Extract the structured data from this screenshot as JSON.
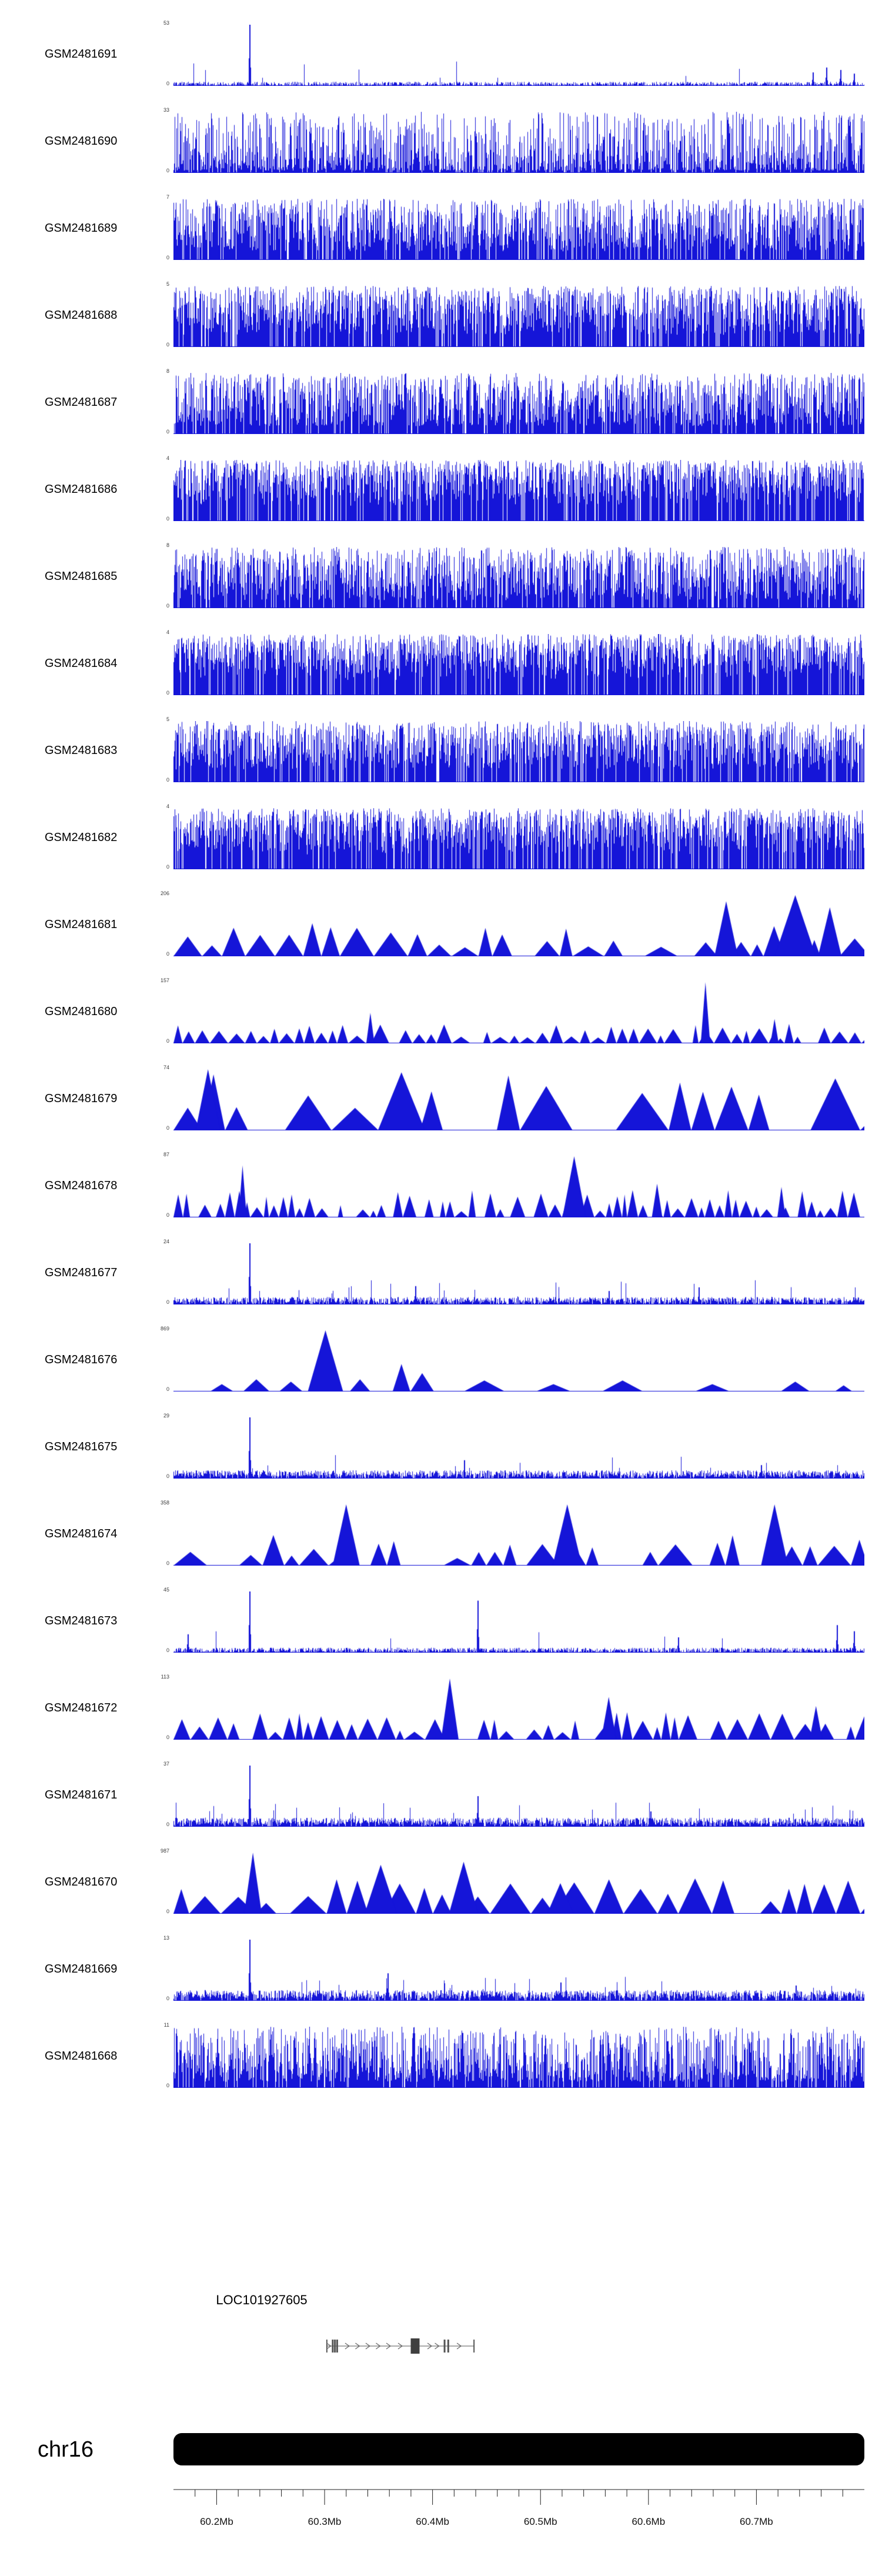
{
  "colors": {
    "signal": "#1515D8",
    "ideogram": "#000000",
    "axis": "#222222",
    "gene_line": "#777777",
    "gene_exon": "#555555",
    "gene_box": "#3f3f3f"
  },
  "chart_data": {
    "type": "area",
    "subtype": "genome-browser-signal-tracks",
    "title": "",
    "x_axis": {
      "unit": "Mb",
      "start_mb": 60.16,
      "end_mb": 60.8,
      "minor_tick_step_mb": 0.02,
      "ticks": [
        {
          "mb": 60.2,
          "label": "60.2Mb"
        },
        {
          "mb": 60.3,
          "label": "60.3Mb"
        },
        {
          "mb": 60.4,
          "label": "60.4Mb"
        },
        {
          "mb": 60.5,
          "label": "60.5Mb"
        },
        {
          "mb": 60.6,
          "label": "60.6Mb"
        },
        {
          "mb": 60.7,
          "label": "60.7Mb"
        }
      ]
    },
    "chromosome": {
      "name": "chr16"
    },
    "gene": {
      "name": "LOC101927605",
      "strand": "+",
      "start_frac": 0.222,
      "end_frac": 0.435,
      "exons": [
        {
          "x": 0.0,
          "w": 0.008
        },
        {
          "x": 0.04,
          "w": 0.012
        },
        {
          "x": 0.055,
          "w": 0.012
        },
        {
          "x": 0.07,
          "w": 0.012
        },
        {
          "x": 0.6,
          "w": 0.06,
          "box": true
        },
        {
          "x": 0.8,
          "w": 0.012
        },
        {
          "x": 0.825,
          "w": 0.012
        },
        {
          "x": 1.0,
          "w": 0.008
        }
      ],
      "arrows": [
        0.015,
        0.14,
        0.21,
        0.28,
        0.35,
        0.42,
        0.5,
        0.7,
        0.75,
        0.9
      ]
    },
    "tracks": [
      {
        "label": "GSM2481691",
        "ymax": 53,
        "ymin": 0,
        "style": "sparse",
        "seed": 11,
        "params": {
          "base": 0.05,
          "gap": 0.3,
          "tallProb": 0.012
        },
        "features": [
          {
            "x": 0.11,
            "h": 1.0
          },
          {
            "x": 0.925,
            "h": 0.22
          },
          {
            "x": 0.945,
            "h": 0.3
          },
          {
            "x": 0.965,
            "h": 0.26
          },
          {
            "x": 0.985,
            "h": 0.2
          }
        ]
      },
      {
        "label": "GSM2481690",
        "ymax": 33,
        "ymin": 0,
        "style": "dense",
        "seed": 23,
        "params": {
          "base": 0.04,
          "pow": 1.9,
          "gap": 0.08,
          "spikeProb": 0.035
        }
      },
      {
        "label": "GSM2481689",
        "ymax": 7,
        "ymin": 0,
        "style": "dense",
        "seed": 37,
        "params": {
          "base": 0.14,
          "pow": 1.0,
          "gap": 0.12,
          "spikeProb": 0.05
        }
      },
      {
        "label": "GSM2481688",
        "ymax": 5,
        "ymin": 0,
        "style": "dense",
        "seed": 41,
        "params": {
          "base": 0.2,
          "pow": 0.85,
          "gap": 0.14,
          "spikeProb": 0.05
        }
      },
      {
        "label": "GSM2481687",
        "ymax": 8,
        "ymin": 0,
        "style": "dense",
        "seed": 53,
        "params": {
          "base": 0.13,
          "pow": 1.1,
          "gap": 0.11,
          "spikeProb": 0.05
        }
      },
      {
        "label": "GSM2481686",
        "ymax": 4,
        "ymin": 0,
        "style": "dense",
        "seed": 67,
        "params": {
          "base": 0.25,
          "pow": 0.7,
          "gap": 0.13,
          "spikeProb": 0.06
        }
      },
      {
        "label": "GSM2481685",
        "ymax": 8,
        "ymin": 0,
        "style": "dense",
        "seed": 71,
        "params": {
          "base": 0.13,
          "pow": 1.05,
          "gap": 0.11,
          "spikeProb": 0.05
        }
      },
      {
        "label": "GSM2481684",
        "ymax": 4,
        "ymin": 0,
        "style": "dense",
        "seed": 83,
        "params": {
          "base": 0.25,
          "pow": 0.7,
          "gap": 0.13,
          "spikeProb": 0.06
        }
      },
      {
        "label": "GSM2481683",
        "ymax": 5,
        "ymin": 0,
        "style": "dense",
        "seed": 97,
        "params": {
          "base": 0.2,
          "pow": 0.85,
          "gap": 0.13,
          "spikeProb": 0.05
        }
      },
      {
        "label": "GSM2481682",
        "ymax": 4,
        "ymin": 0,
        "style": "dense",
        "seed": 101,
        "params": {
          "base": 0.24,
          "pow": 0.72,
          "gap": 0.13,
          "spikeProb": 0.06
        }
      },
      {
        "label": "GSM2481681",
        "ymax": 206,
        "ymin": 0,
        "style": "peaks",
        "seed": 113,
        "params": {
          "wMin": 20,
          "wMax": 60,
          "hMin": 0.12,
          "hMax": 0.55,
          "gapProb": 0.2
        },
        "features": [
          {
            "x": 0.8,
            "h": 0.9,
            "w": 40
          },
          {
            "x": 0.9,
            "h": 1.0,
            "w": 70
          },
          {
            "x": 0.95,
            "h": 0.8,
            "w": 40
          }
        ]
      },
      {
        "label": "GSM2481680",
        "ymax": 157,
        "ymin": 0,
        "style": "peaks",
        "seed": 127,
        "params": {
          "wMin": 10,
          "wMax": 32,
          "hMin": 0.08,
          "hMax": 0.32,
          "gapProb": 0.25
        },
        "features": [
          {
            "x": 0.285,
            "h": 0.5,
            "w": 14
          },
          {
            "x": 0.77,
            "h": 1.0,
            "w": 16
          },
          {
            "x": 0.87,
            "h": 0.4,
            "w": 14
          }
        ]
      },
      {
        "label": "GSM2481679",
        "ymax": 74,
        "ymin": 0,
        "style": "peaks",
        "seed": 131,
        "params": {
          "wMin": 35,
          "wMax": 105,
          "hMin": 0.3,
          "hMax": 1.0,
          "gapProb": 0.18
        },
        "features": [
          {
            "x": 0.05,
            "h": 1.0,
            "w": 42
          },
          {
            "x": 0.33,
            "h": 0.95,
            "w": 80
          }
        ]
      },
      {
        "label": "GSM2481678",
        "ymax": 87,
        "ymin": 0,
        "style": "peaks",
        "seed": 139,
        "params": {
          "wMin": 8,
          "wMax": 26,
          "hMin": 0.1,
          "hMax": 0.45,
          "gapProb": 0.2
        },
        "features": [
          {
            "x": 0.1,
            "h": 0.85,
            "w": 14
          },
          {
            "x": 0.58,
            "h": 1.0,
            "w": 40
          },
          {
            "x": 0.7,
            "h": 0.55,
            "w": 18
          },
          {
            "x": 0.88,
            "h": 0.5,
            "w": 14
          }
        ]
      },
      {
        "label": "GSM2481677",
        "ymax": 24,
        "ymin": 0,
        "style": "sparse",
        "seed": 149,
        "params": {
          "base": 0.09,
          "gap": 0.15,
          "tallProb": 0.02
        },
        "features": [
          {
            "x": 0.11,
            "h": 1.0
          },
          {
            "x": 0.35,
            "h": 0.3
          },
          {
            "x": 0.63,
            "h": 0.22
          },
          {
            "x": 0.76,
            "h": 0.28
          }
        ]
      },
      {
        "label": "GSM2481676",
        "ymax": 869,
        "ymin": 0,
        "style": "peaks",
        "seed": 151,
        "params": {
          "fill": false
        },
        "features": [
          {
            "x": 0.07,
            "h": 0.12,
            "w": 40
          },
          {
            "x": 0.12,
            "h": 0.2,
            "w": 45
          },
          {
            "x": 0.17,
            "h": 0.16,
            "w": 40
          },
          {
            "x": 0.22,
            "h": 1.0,
            "w": 60
          },
          {
            "x": 0.27,
            "h": 0.2,
            "w": 35
          },
          {
            "x": 0.33,
            "h": 0.45,
            "w": 30
          },
          {
            "x": 0.36,
            "h": 0.3,
            "w": 40
          },
          {
            "x": 0.45,
            "h": 0.18,
            "w": 70
          },
          {
            "x": 0.55,
            "h": 0.12,
            "w": 60
          },
          {
            "x": 0.65,
            "h": 0.18,
            "w": 70
          },
          {
            "x": 0.78,
            "h": 0.12,
            "w": 60
          },
          {
            "x": 0.9,
            "h": 0.16,
            "w": 50
          },
          {
            "x": 0.97,
            "h": 0.1,
            "w": 30
          }
        ]
      },
      {
        "label": "GSM2481675",
        "ymax": 29,
        "ymin": 0,
        "style": "sparse",
        "seed": 163,
        "params": {
          "base": 0.1,
          "gap": 0.12,
          "tallProb": 0.02
        },
        "features": [
          {
            "x": 0.11,
            "h": 1.0
          },
          {
            "x": 0.42,
            "h": 0.3
          },
          {
            "x": 0.85,
            "h": 0.22
          }
        ]
      },
      {
        "label": "GSM2481674",
        "ymax": 358,
        "ymin": 0,
        "style": "peaks",
        "seed": 167,
        "params": {
          "wMin": 20,
          "wMax": 60,
          "hMin": 0.12,
          "hMax": 0.5,
          "gapProb": 0.22
        },
        "features": [
          {
            "x": 0.25,
            "h": 1.0,
            "w": 46
          },
          {
            "x": 0.57,
            "h": 1.0,
            "w": 50
          },
          {
            "x": 0.87,
            "h": 1.0,
            "w": 46
          }
        ]
      },
      {
        "label": "GSM2481673",
        "ymax": 45,
        "ymin": 0,
        "style": "sparse",
        "seed": 173,
        "params": {
          "base": 0.06,
          "gap": 0.3,
          "tallProb": 0.012
        },
        "features": [
          {
            "x": 0.02,
            "h": 0.3
          },
          {
            "x": 0.11,
            "h": 1.0
          },
          {
            "x": 0.44,
            "h": 0.85
          },
          {
            "x": 0.73,
            "h": 0.25
          },
          {
            "x": 0.96,
            "h": 0.45
          },
          {
            "x": 0.985,
            "h": 0.35
          }
        ]
      },
      {
        "label": "GSM2481672",
        "ymax": 113,
        "ymin": 0,
        "style": "peaks",
        "seed": 179,
        "params": {
          "wMin": 12,
          "wMax": 40,
          "hMin": 0.12,
          "hMax": 0.45,
          "gapProb": 0.18
        },
        "features": [
          {
            "x": 0.4,
            "h": 1.0,
            "w": 30
          },
          {
            "x": 0.63,
            "h": 0.7,
            "w": 26
          },
          {
            "x": 0.93,
            "h": 0.55,
            "w": 22
          }
        ]
      },
      {
        "label": "GSM2481671",
        "ymax": 37,
        "ymin": 0,
        "style": "sparse",
        "seed": 181,
        "params": {
          "base": 0.11,
          "gap": 0.12,
          "tallProb": 0.02
        },
        "features": [
          {
            "x": 0.11,
            "h": 1.0
          },
          {
            "x": 0.44,
            "h": 0.5
          },
          {
            "x": 0.69,
            "h": 0.25
          }
        ]
      },
      {
        "label": "GSM2481670",
        "ymax": 987,
        "ymin": 0,
        "style": "peaks",
        "seed": 191,
        "params": {
          "wMin": 25,
          "wMax": 70,
          "hMin": 0.15,
          "hMax": 0.6,
          "gapProb": 0.25
        },
        "features": [
          {
            "x": 0.115,
            "h": 1.0,
            "w": 30
          },
          {
            "x": 0.3,
            "h": 0.8,
            "w": 55
          },
          {
            "x": 0.42,
            "h": 0.85,
            "w": 50
          },
          {
            "x": 0.56,
            "h": 0.5,
            "w": 45
          }
        ]
      },
      {
        "label": "GSM2481669",
        "ymax": 13,
        "ymin": 0,
        "style": "sparse",
        "seed": 193,
        "params": {
          "base": 0.13,
          "gap": 0.1,
          "tallProb": 0.025
        },
        "features": [
          {
            "x": 0.11,
            "h": 1.0
          },
          {
            "x": 0.31,
            "h": 0.45
          },
          {
            "x": 0.56,
            "h": 0.3
          },
          {
            "x": 0.9,
            "h": 0.25
          }
        ]
      },
      {
        "label": "GSM2481668",
        "ymax": 11,
        "ymin": 0,
        "style": "dense",
        "seed": 197,
        "params": {
          "base": 0.1,
          "pow": 1.35,
          "gap": 0.09,
          "spikeProb": 0.03
        }
      }
    ]
  }
}
